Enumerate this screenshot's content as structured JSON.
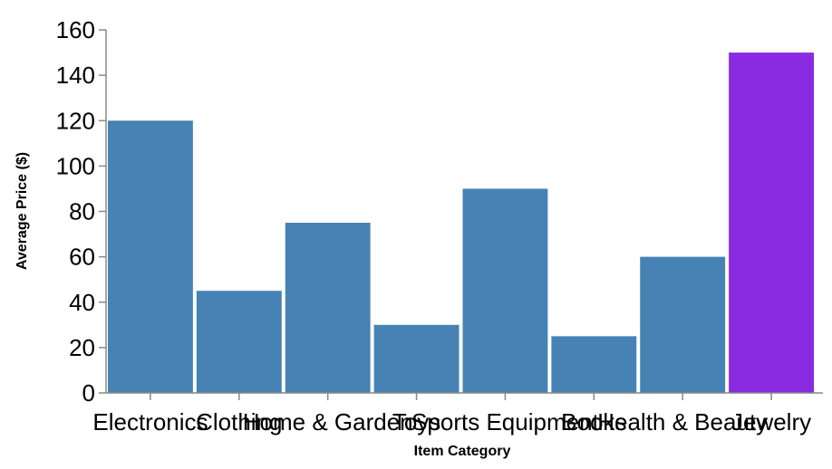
{
  "chart_data": {
    "type": "bar",
    "categories": [
      "Electronics",
      "Clothing",
      "Home & Garden",
      "Toys",
      "Sports Equipment",
      "Books",
      "Health & Beauty",
      "Jewelry"
    ],
    "values": [
      120,
      45,
      75,
      30,
      90,
      25,
      60,
      150
    ],
    "xlabel": "Item Category",
    "ylabel": "Average Price ($)",
    "ylim": [
      0,
      160
    ],
    "yticks": [
      0,
      20,
      40,
      60,
      80,
      100,
      120,
      140,
      160
    ],
    "colors": {
      "default": "#4682b4",
      "highlight": "#8a2be2"
    },
    "highlight_category": "Jewelry",
    "grid": false,
    "legend": "none"
  }
}
